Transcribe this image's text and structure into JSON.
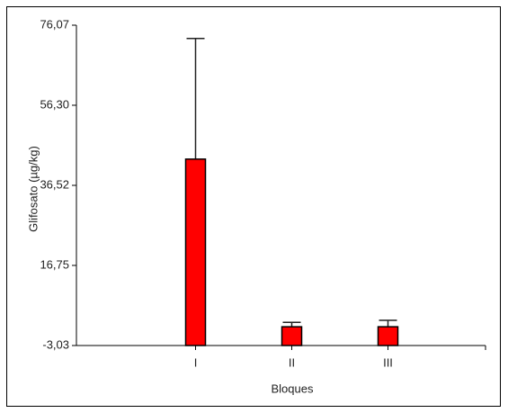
{
  "chart_data": {
    "type": "bar",
    "x_label": "Bloques",
    "y_label": "Glifosato (µg/kg)",
    "categories": [
      "I",
      "II",
      "III"
    ],
    "values": [
      43.0,
      1.6,
      1.6
    ],
    "errors": [
      29.8,
      1.1,
      1.6
    ],
    "color": "#ff0000",
    "ylim": [
      -3.03,
      76.07
    ],
    "yticks": [
      {
        "value": -3.03,
        "label": "-3,03"
      },
      {
        "value": 16.75,
        "label": "16,75"
      },
      {
        "value": 36.52,
        "label": "36,52"
      },
      {
        "value": 56.3,
        "label": "56,30"
      },
      {
        "value": 76.07,
        "label": "76,07"
      }
    ],
    "grid": false
  }
}
